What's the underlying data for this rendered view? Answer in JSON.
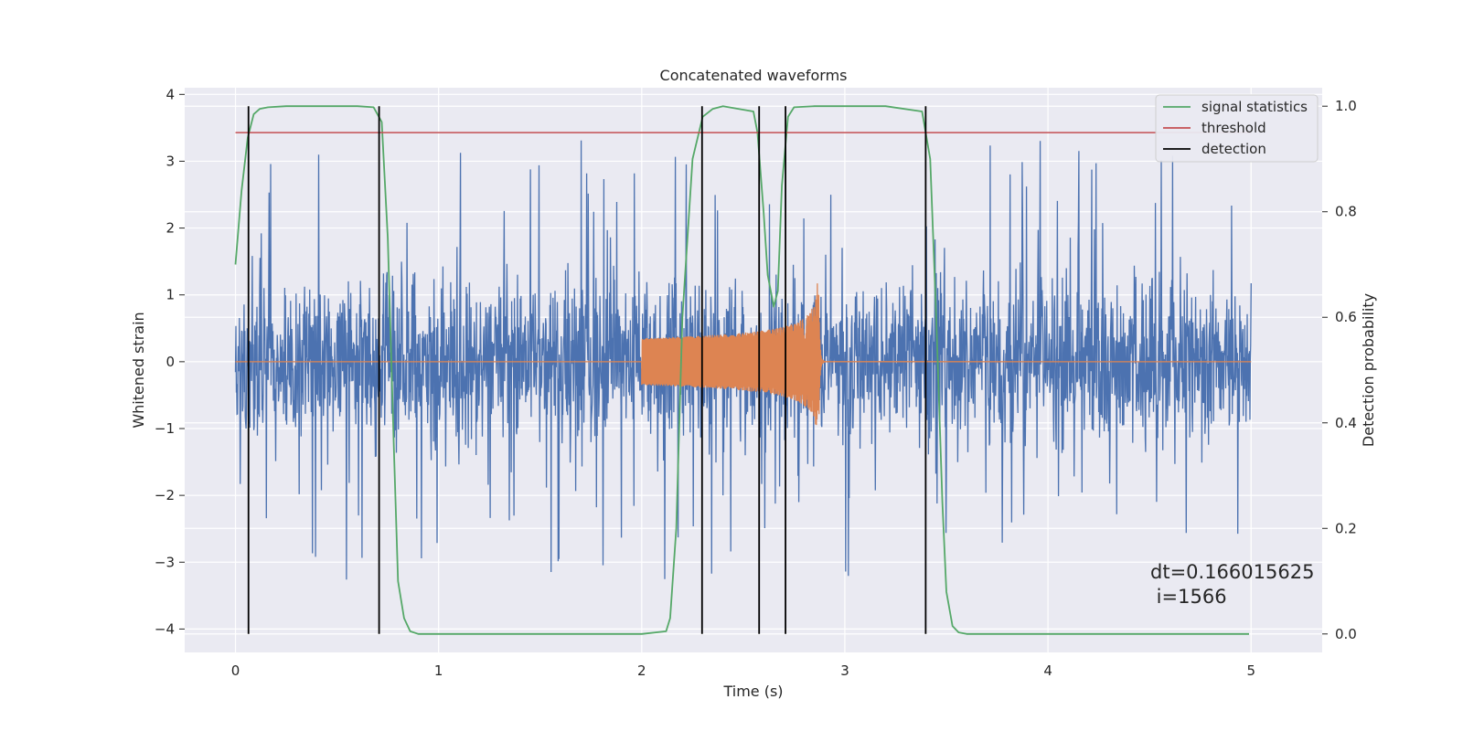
{
  "chart_data": {
    "type": "line",
    "title": "Concatenated waveforms",
    "xlabel": "Time (s)",
    "ylabel": "Whitened strain",
    "y2label": "Detection probability",
    "xlim": [
      -0.25,
      5.35
    ],
    "ylim": [
      -4.35,
      4.1
    ],
    "y2lim": [
      -0.035,
      1.035
    ],
    "x_ticks": [
      0,
      1,
      2,
      3,
      4,
      5
    ],
    "x_tick_labels": [
      "0",
      "1",
      "2",
      "3",
      "4",
      "5"
    ],
    "y_ticks": [
      -4,
      -3,
      -2,
      -1,
      0,
      1,
      2,
      3,
      4
    ],
    "y_tick_labels": [
      "−4",
      "−3",
      "−2",
      "−1",
      "0",
      "1",
      "2",
      "3",
      "4"
    ],
    "y2_ticks": [
      0.0,
      0.2,
      0.4,
      0.6,
      0.8,
      1.0
    ],
    "y2_tick_labels": [
      "0.0",
      "0.2",
      "0.4",
      "0.6",
      "0.8",
      "1.0"
    ],
    "grid": true,
    "legend_position": "top-right",
    "noise": {
      "x_range": [
        0,
        5
      ],
      "typical_band": [
        -1.0,
        1.0
      ],
      "extremes": [
        -4.0,
        3.7
      ],
      "color": "#4c72b0"
    },
    "chirp": {
      "x_range": [
        2.0,
        2.87
      ],
      "amplitude_start": 0.35,
      "amplitude_peak": 1.25,
      "peak_time": 2.87,
      "color": "#dd8452"
    },
    "series": [
      {
        "name": "signal statistics",
        "axis": "right",
        "color": "#55a868",
        "x": [
          0,
          0.03,
          0.06,
          0.09,
          0.12,
          0.16,
          0.25,
          0.4,
          0.6,
          0.68,
          0.72,
          0.75,
          0.78,
          0.8,
          0.83,
          0.86,
          0.9,
          1.2,
          2.0,
          2.12,
          2.14,
          2.17,
          2.2,
          2.25,
          2.3,
          2.35,
          2.4,
          2.55,
          2.57,
          2.6,
          2.62,
          2.65,
          2.67,
          2.69,
          2.72,
          2.75,
          2.85,
          3.2,
          3.38,
          3.42,
          3.45,
          3.48,
          3.5,
          3.53,
          3.56,
          3.6,
          4.0,
          4.99
        ],
        "y": [
          0.7,
          0.84,
          0.94,
          0.985,
          0.995,
          0.998,
          1.0,
          1.0,
          1.0,
          0.998,
          0.97,
          0.75,
          0.35,
          0.1,
          0.03,
          0.005,
          0.0,
          0.0,
          0.0,
          0.005,
          0.03,
          0.2,
          0.6,
          0.9,
          0.98,
          0.995,
          1.0,
          0.99,
          0.95,
          0.8,
          0.68,
          0.62,
          0.65,
          0.85,
          0.98,
          0.998,
          1.0,
          1.0,
          0.99,
          0.9,
          0.6,
          0.25,
          0.08,
          0.015,
          0.003,
          0.0,
          0.0,
          0.0
        ]
      },
      {
        "name": "threshold",
        "axis": "right",
        "color": "#c44e52",
        "x": [
          0,
          5
        ],
        "y": [
          0.95,
          0.95
        ]
      },
      {
        "name": "detection",
        "type": "vlines",
        "axis": "right",
        "color": "#000000",
        "x": [
          0.064,
          0.707,
          2.297,
          2.578,
          2.708,
          3.398
        ],
        "ymin": 0.0,
        "ymax": 1.0
      }
    ],
    "annotation": {
      "line1": "dt=0.166015625",
      "line2": " i=1566",
      "x": 4.5,
      "y": -3.2
    }
  }
}
